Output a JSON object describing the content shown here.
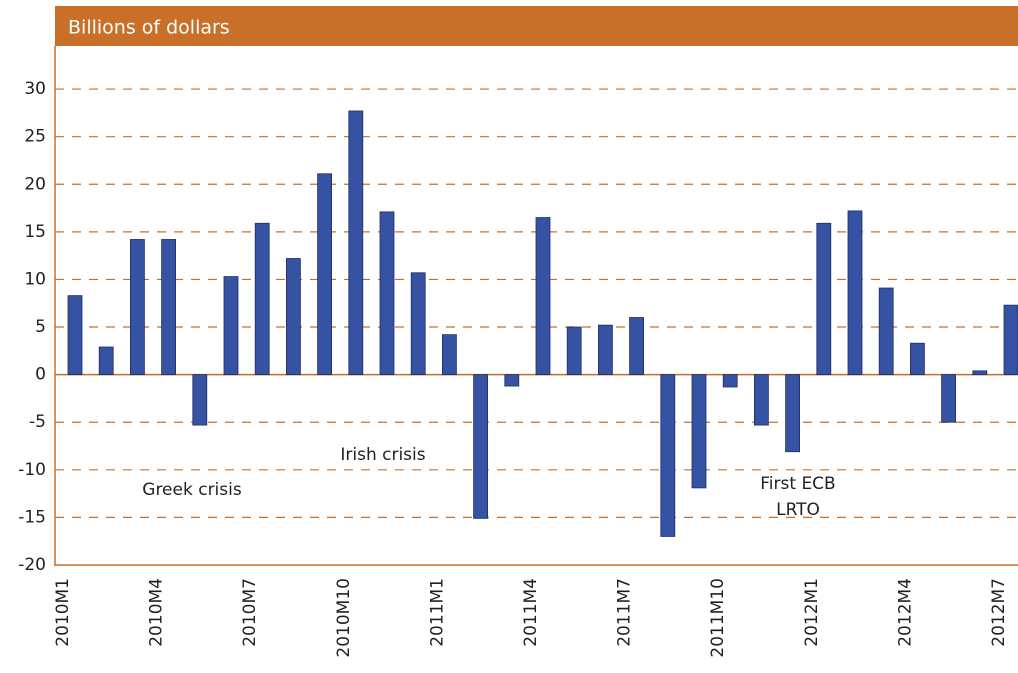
{
  "chart_data": {
    "type": "bar",
    "title": "Billions of dollars",
    "categories": [
      "2010M1",
      null,
      null,
      "2010M4",
      null,
      null,
      "2010M7",
      null,
      null,
      "2010M10",
      null,
      null,
      "2011M1",
      null,
      null,
      "2011M4",
      null,
      null,
      "2011M7",
      null,
      null,
      "2011M10",
      null,
      null,
      "2012M1",
      null,
      null,
      "2012M4",
      null,
      null,
      "2012M7"
    ],
    "values": [
      8.3,
      2.9,
      14.2,
      14.2,
      -5.3,
      10.3,
      15.9,
      12.2,
      21.1,
      27.7,
      17.1,
      10.7,
      4.2,
      -15.1,
      -1.2,
      16.5,
      5.0,
      5.2,
      6.0,
      -17.0,
      -11.9,
      -1.3,
      -5.3,
      -8.1,
      15.9,
      17.2,
      9.1,
      3.3,
      -5.0,
      0.4,
      7.3
    ],
    "color": "#3653a3",
    "ylim": [
      -20,
      34
    ],
    "yticks": [
      -20,
      -15,
      -10,
      -5,
      0,
      5,
      10,
      15,
      20,
      25,
      30
    ],
    "grid": true,
    "annotations": [
      {
        "lines": [
          "Greek crisis"
        ]
      },
      {
        "lines": [
          "Irish crisis"
        ]
      },
      {
        "lines": [
          "First ECB",
          "LRTO"
        ]
      }
    ]
  }
}
